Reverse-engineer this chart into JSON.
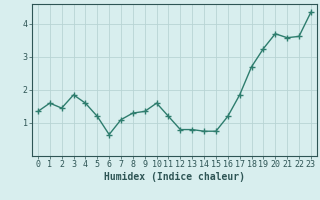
{
  "x": [
    0,
    1,
    2,
    3,
    4,
    5,
    6,
    7,
    8,
    9,
    10,
    11,
    12,
    13,
    14,
    15,
    16,
    17,
    18,
    19,
    20,
    21,
    22,
    23
  ],
  "y": [
    1.35,
    1.6,
    1.45,
    1.85,
    1.6,
    1.2,
    0.65,
    1.1,
    1.3,
    1.35,
    1.6,
    1.2,
    0.8,
    0.8,
    0.75,
    0.75,
    1.2,
    1.85,
    2.7,
    3.25,
    3.7,
    3.58,
    3.62,
    4.35
  ],
  "line_color": "#2e7d6e",
  "marker": "+",
  "marker_size": 4,
  "marker_lw": 1.0,
  "bg_color": "#d8eeee",
  "grid_color": "#b8d4d4",
  "xlabel": "Humidex (Indice chaleur)",
  "xlim": [
    -0.5,
    23.5
  ],
  "ylim": [
    0,
    4.6
  ],
  "yticks": [
    1,
    2,
    3,
    4
  ],
  "xticks": [
    0,
    1,
    2,
    3,
    4,
    5,
    6,
    7,
    8,
    9,
    10,
    11,
    12,
    13,
    14,
    15,
    16,
    17,
    18,
    19,
    20,
    21,
    22,
    23
  ],
  "xlabel_fontsize": 7,
  "tick_fontsize": 6,
  "tick_color": "#2e5555",
  "line_width": 1.0
}
